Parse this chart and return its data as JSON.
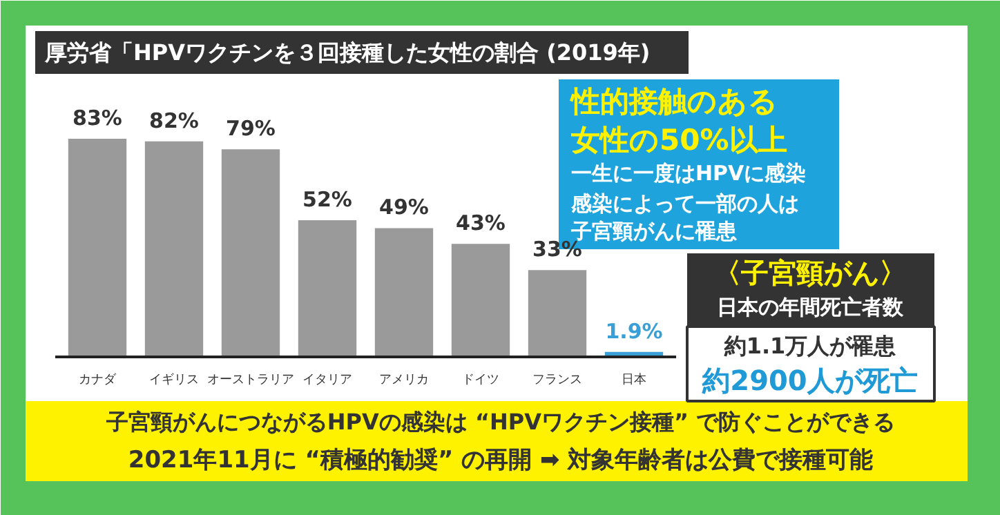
{
  "chart_data": {
    "type": "bar",
    "title": "厚労省「HPVワクチンを３回接種した女性の割合 (2019年)",
    "categories": [
      "カナダ",
      "イギリス",
      "オーストラリア",
      "イタリア",
      "アメリカ",
      "ドイツ",
      "フランス",
      "日本"
    ],
    "values": [
      83,
      82,
      79,
      52,
      49,
      43,
      33,
      1.9
    ],
    "colors": [
      "#9a9a9a",
      "#9a9a9a",
      "#9a9a9a",
      "#9a9a9a",
      "#9a9a9a",
      "#9a9a9a",
      "#9a9a9a",
      "#3a9fd6"
    ],
    "value_labels": [
      "83%",
      "82%",
      "79%",
      "52%",
      "49%",
      "43%",
      "33%",
      "1.9%"
    ],
    "grid": false,
    "annotations": [
      "性的接触のある",
      "女性の50%以上",
      "一生に一度はHPVに感染",
      "感染によって一部の人は",
      "子宮頸がんに罹患",
      "〈子宮頸がん〉",
      "日本の年間死亡者数",
      "約1.1万人が罹患",
      "約2900人が死亡",
      "子宮頸がんにつながるHPVの感染は “HPVワクチン接種” で防ぐことができる",
      "2021年11月に “積極的勧奨” の再開 ➡ 対象年齢者は公費で接種可能"
    ]
  }
}
